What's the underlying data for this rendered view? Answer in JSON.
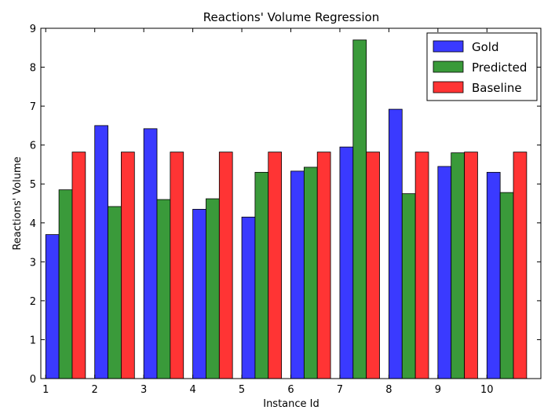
{
  "chart_data": {
    "type": "bar",
    "title": "Reactions' Volume Regression",
    "xlabel": "Instance Id",
    "ylabel": "Reactions' Volume",
    "categories": [
      "1",
      "2",
      "3",
      "4",
      "5",
      "6",
      "7",
      "8",
      "9",
      "10"
    ],
    "xlim": [
      0.9,
      11.1
    ],
    "ylim": [
      0,
      9
    ],
    "yticks": [
      0,
      1,
      2,
      3,
      4,
      5,
      6,
      7,
      8,
      9
    ],
    "grid": false,
    "legend": "top-right",
    "series": [
      {
        "name": "Gold",
        "color": "#3a3aff",
        "values": [
          3.7,
          6.5,
          6.42,
          4.35,
          4.15,
          5.33,
          5.95,
          6.92,
          5.45,
          5.3
        ]
      },
      {
        "name": "Predicted",
        "color": "#3a9a3a",
        "values": [
          4.85,
          4.42,
          4.6,
          4.62,
          5.3,
          5.43,
          8.7,
          4.75,
          5.8,
          4.78
        ]
      },
      {
        "name": "Baseline",
        "color": "#ff3434",
        "values": [
          5.82,
          5.82,
          5.82,
          5.82,
          5.82,
          5.82,
          5.82,
          5.82,
          5.82,
          5.82
        ]
      }
    ]
  }
}
